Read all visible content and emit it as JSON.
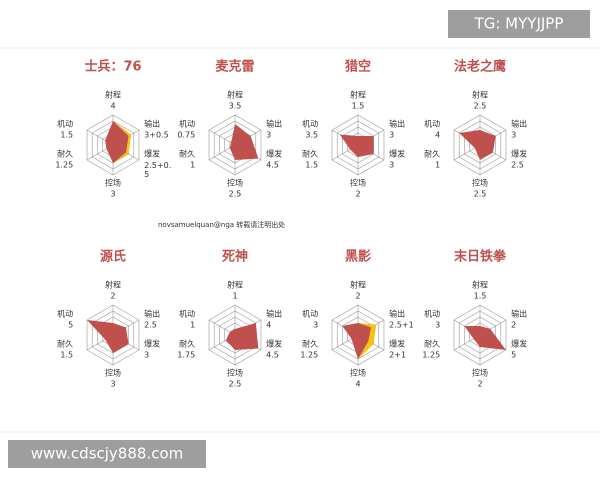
{
  "watermark_top": "TG: MYYJJPP",
  "watermark_bottom": "www.cdscjy888.com",
  "credit": "novsamuelquan@nga 转载请注明出处",
  "chart_data": [
    {
      "type": "radar",
      "title": "士兵：76",
      "categories": [
        "射程",
        "输出",
        "爆发",
        "控场",
        "耐久",
        "机动"
      ],
      "values": [
        4,
        3,
        2.5,
        3,
        1.25,
        1.5
      ],
      "bonus": [
        0,
        0.5,
        0.5,
        0,
        0,
        0
      ],
      "value_labels": [
        null,
        "3+0.5",
        "2.5+0.\n5",
        null,
        null,
        null
      ],
      "color": "#c0504d",
      "bonus_color": "#f2c314",
      "rlim": [
        0,
        5
      ],
      "rticks": [
        1,
        2,
        3,
        4,
        5
      ]
    },
    {
      "type": "radar",
      "title": "麦克雷",
      "categories": [
        "射程",
        "输出",
        "爆发",
        "控场",
        "耐久",
        "机动"
      ],
      "values": [
        3.5,
        3,
        4.5,
        2.5,
        1,
        0.75
      ],
      "color": "#c0504d",
      "rlim": [
        0,
        5
      ],
      "rticks": [
        1,
        2,
        3,
        4,
        5
      ]
    },
    {
      "type": "radar",
      "title": "猎空",
      "categories": [
        "射程",
        "输出",
        "爆发",
        "控场",
        "耐久",
        "机动"
      ],
      "values": [
        1.5,
        3,
        3,
        2,
        1.5,
        3.5
      ],
      "color": "#c0504d",
      "rlim": [
        0,
        5
      ],
      "rticks": [
        1,
        2,
        3,
        4,
        5
      ]
    },
    {
      "type": "radar",
      "title": "法老之鹰",
      "categories": [
        "射程",
        "输出",
        "爆发",
        "控场",
        "耐久",
        "机动"
      ],
      "values": [
        2.5,
        3,
        2.5,
        2.5,
        1,
        4
      ],
      "color": "#c0504d",
      "rlim": [
        0,
        5
      ],
      "rticks": [
        1,
        2,
        3,
        4,
        5
      ]
    },
    {
      "type": "radar",
      "title": "源氏",
      "categories": [
        "射程",
        "输出",
        "爆发",
        "控场",
        "耐久",
        "机动"
      ],
      "values": [
        2,
        2.5,
        3,
        3,
        1.5,
        5
      ],
      "color": "#c0504d",
      "rlim": [
        0,
        5
      ],
      "rticks": [
        1,
        2,
        3,
        4,
        5
      ]
    },
    {
      "type": "radar",
      "title": "死神",
      "categories": [
        "射程",
        "输出",
        "爆发",
        "控场",
        "耐久",
        "机动"
      ],
      "values": [
        1,
        4,
        4.5,
        2.5,
        1.75,
        1
      ],
      "color": "#c0504d",
      "rlim": [
        0,
        5
      ],
      "rticks": [
        1,
        2,
        3,
        4,
        5
      ]
    },
    {
      "type": "radar",
      "title": "黑影",
      "categories": [
        "射程",
        "输出",
        "爆发",
        "控场",
        "耐久",
        "机动"
      ],
      "values": [
        2,
        2.5,
        2,
        4,
        1.25,
        3
      ],
      "bonus": [
        0,
        1,
        1,
        0,
        0,
        0
      ],
      "value_labels": [
        null,
        "2.5+1",
        "2+1",
        null,
        null,
        null
      ],
      "color": "#c0504d",
      "bonus_color": "#f2c314",
      "rlim": [
        0,
        5
      ],
      "rticks": [
        1,
        2,
        3,
        4,
        5
      ]
    },
    {
      "type": "radar",
      "title": "末日铁拳",
      "categories": [
        "射程",
        "输出",
        "爆发",
        "控场",
        "耐久",
        "机动"
      ],
      "values": [
        1.5,
        2,
        5,
        2,
        1.25,
        3
      ],
      "color": "#c0504d",
      "rlim": [
        0,
        5
      ],
      "rticks": [
        1,
        2,
        3,
        4,
        5
      ]
    }
  ]
}
